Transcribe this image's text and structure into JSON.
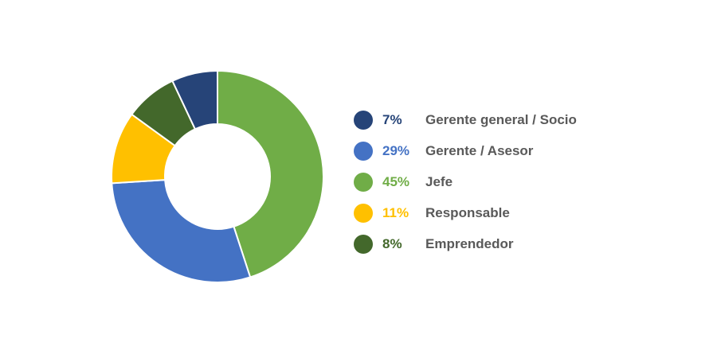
{
  "chart_data": {
    "type": "pie",
    "donut": true,
    "title": "",
    "legend_position": "right",
    "slices": [
      {
        "name": "Gerente general / Socio",
        "value": 7,
        "label": "7%",
        "color": "#264478"
      },
      {
        "name": "Gerente / Asesor",
        "value": 29,
        "label": "29%",
        "color": "#4472C4"
      },
      {
        "name": "Jefe",
        "value": 45,
        "label": "45%",
        "color": "#70AD47"
      },
      {
        "name": "Responsable",
        "value": 11,
        "label": "11%",
        "color": "#FFC000"
      },
      {
        "name": "Emprendedor",
        "value": 8,
        "label": "8%",
        "color": "#43682B"
      }
    ],
    "draw_order": [
      "Jefe",
      "Gerente / Asesor",
      "Responsable",
      "Emprendedor",
      "Gerente general / Socio"
    ]
  }
}
